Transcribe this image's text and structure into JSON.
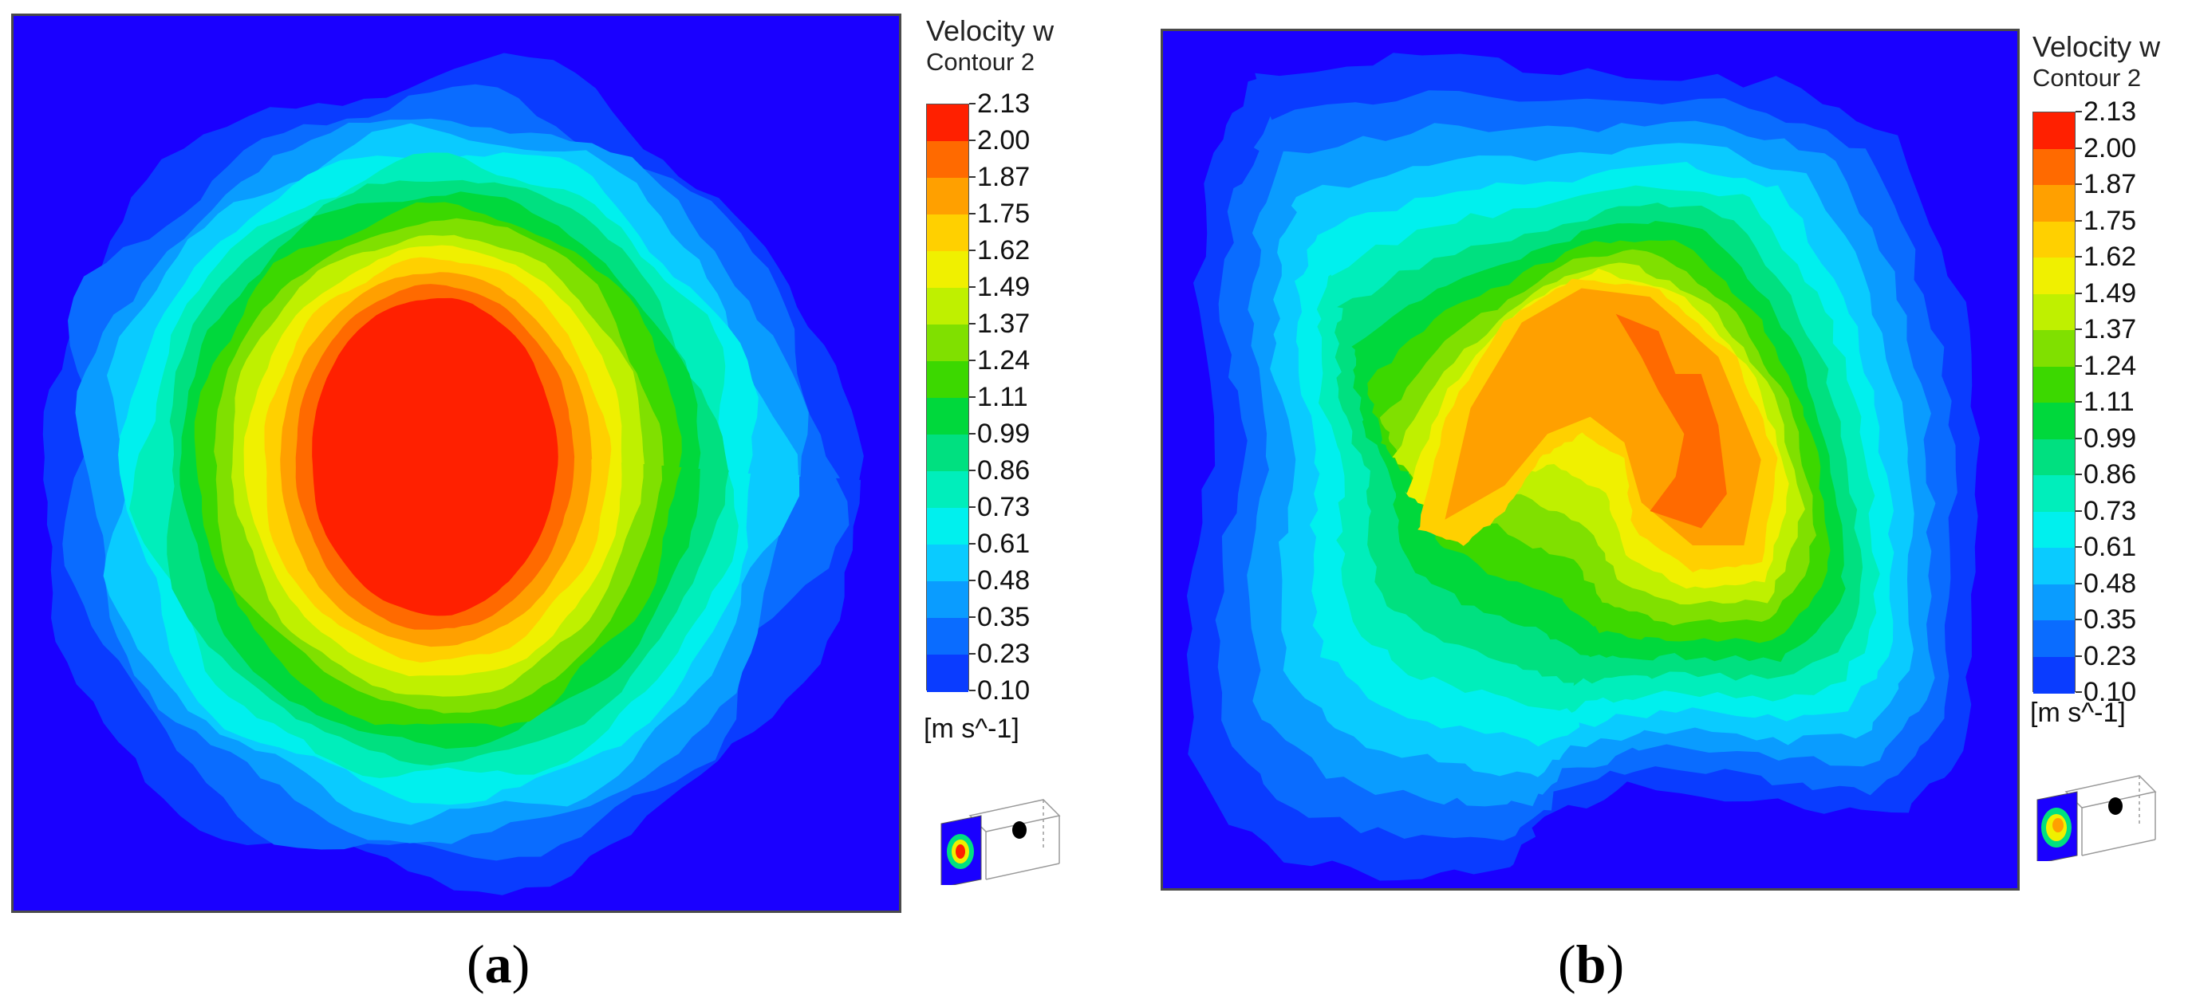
{
  "colors": {
    "background": "#1a00ff",
    "levels": [
      "#1a00ff",
      "#0a3cff",
      "#0a6cff",
      "#0a9cff",
      "#0acbff",
      "#00f0ee",
      "#00eebb",
      "#00e080",
      "#00d83c",
      "#3cd800",
      "#80e000",
      "#bff000",
      "#f0f000",
      "#ffd000",
      "#ffa000",
      "#ff6a00",
      "#ff2000"
    ]
  },
  "chart_data": [
    {
      "panel_label": "a",
      "type": "heatmap",
      "title": "Velocity w",
      "subtitle": "Contour 2",
      "unit": "[m s^-1]",
      "colorbar_ticks": [
        "2.13",
        "2.00",
        "1.87",
        "1.75",
        "1.62",
        "1.49",
        "1.37",
        "1.24",
        "1.11",
        "0.99",
        "0.86",
        "0.73",
        "0.61",
        "0.48",
        "0.35",
        "0.23",
        "0.10"
      ],
      "range": [
        0.1,
        2.13
      ],
      "pattern": "single central peak (round blob) reaching max level 2.13 at center, decaying radially to 0.10 at edges",
      "peak_value": 2.13,
      "triad_icon": "axis-triad-icon"
    },
    {
      "panel_label": "b",
      "type": "heatmap",
      "title": "Velocity w",
      "subtitle": "Contour 2",
      "unit": "[m s^-1]",
      "colorbar_ticks": [
        "2.13",
        "2.00",
        "1.87",
        "1.75",
        "1.62",
        "1.49",
        "1.37",
        "1.24",
        "1.11",
        "0.99",
        "0.86",
        "0.73",
        "0.61",
        "0.48",
        "0.35",
        "0.23",
        "0.10"
      ],
      "range": [
        0.1,
        2.13
      ],
      "pattern": "broad irregular (C-shaped) region with plateau ~1.75-1.87 and small patches up to ~2.00, decaying to 0.10 at edges",
      "peak_value": 2.0,
      "triad_icon": "axis-triad-icon"
    }
  ],
  "panels": {
    "a": {
      "label_open": "(",
      "label_letter": "a",
      "label_close": ")"
    },
    "b": {
      "label_open": "(",
      "label_letter": "b",
      "label_close": ")"
    }
  }
}
